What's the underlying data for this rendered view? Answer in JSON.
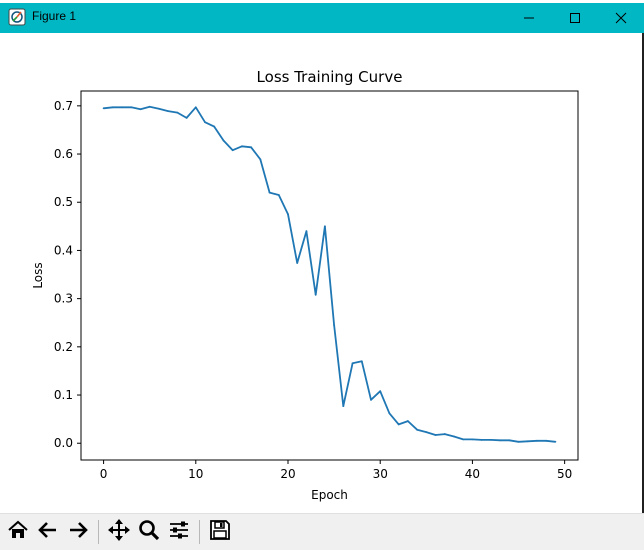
{
  "window": {
    "title": "Figure 1",
    "accent_color": "#00b7c3",
    "controls": [
      "minimize-icon",
      "maximize-icon",
      "close-icon"
    ]
  },
  "toolbar": {
    "buttons": [
      "home-icon",
      "back-icon",
      "forward-icon",
      "pan-icon",
      "zoom-icon",
      "configure-subplots-icon",
      "save-icon"
    ]
  },
  "chart_data": {
    "type": "line",
    "title": "Loss Training Curve",
    "xlabel": "Epoch",
    "ylabel": "Loss",
    "xlim": [
      -2.45,
      51.45
    ],
    "ylim": [
      -0.0348,
      0.7308
    ],
    "xticks": [
      0,
      10,
      20,
      30,
      40,
      50
    ],
    "yticks": [
      0.0,
      0.1,
      0.2,
      0.3,
      0.4,
      0.5,
      0.6,
      0.7
    ],
    "ytick_labels": [
      "0.0",
      "0.1",
      "0.2",
      "0.3",
      "0.4",
      "0.5",
      "0.6",
      "0.7"
    ],
    "grid": false,
    "line_color": "#1f77b4",
    "x": [
      0,
      1,
      2,
      3,
      4,
      5,
      6,
      7,
      8,
      9,
      10,
      11,
      12,
      13,
      14,
      15,
      16,
      17,
      18,
      19,
      20,
      21,
      22,
      23,
      24,
      25,
      26,
      27,
      28,
      29,
      30,
      31,
      32,
      33,
      34,
      35,
      36,
      37,
      38,
      39,
      40,
      41,
      42,
      43,
      44,
      45,
      46,
      47,
      48,
      49
    ],
    "y": [
      0.695,
      0.697,
      0.697,
      0.697,
      0.693,
      0.698,
      0.694,
      0.689,
      0.686,
      0.675,
      0.697,
      0.666,
      0.657,
      0.628,
      0.608,
      0.616,
      0.614,
      0.589,
      0.52,
      0.515,
      0.475,
      0.374,
      0.44,
      0.308,
      0.45,
      0.245,
      0.077,
      0.166,
      0.17,
      0.09,
      0.108,
      0.062,
      0.039,
      0.046,
      0.028,
      0.023,
      0.017,
      0.019,
      0.014,
      0.008,
      0.008,
      0.007,
      0.007,
      0.006,
      0.006,
      0.003,
      0.004,
      0.005,
      0.005,
      0.003
    ]
  }
}
